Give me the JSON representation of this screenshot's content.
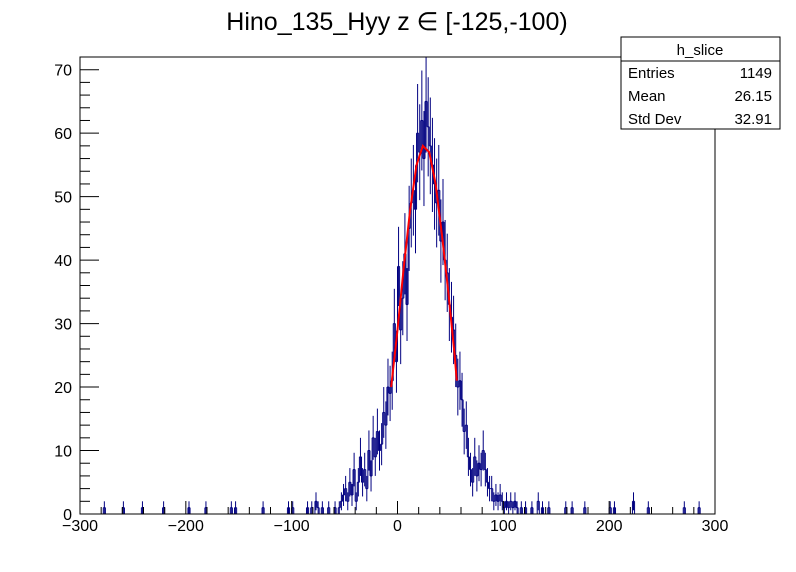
{
  "chart_data": {
    "type": "histogram",
    "title": "Hino_135_Hyy z  ∈ [-125,-100)",
    "xlim": [
      -300,
      300
    ],
    "ylim": [
      0,
      72
    ],
    "x_ticks": [
      -300,
      -200,
      -100,
      0,
      100,
      200,
      300
    ],
    "x_tick_labels": [
      "−300",
      "−200",
      "−100",
      "0",
      "100",
      "200",
      "300"
    ],
    "y_ticks": [
      0,
      10,
      20,
      30,
      40,
      50,
      60,
      70
    ],
    "y_tick_labels": [
      "0",
      "10",
      "20",
      "30",
      "40",
      "50",
      "60",
      "70"
    ],
    "grid": false,
    "bin_width": 2,
    "histogram": {
      "name": "h_slice",
      "color": "#000080",
      "bins": [
        [
          -278,
          1
        ],
        [
          -260,
          1
        ],
        [
          -242,
          1
        ],
        [
          -222,
          1
        ],
        [
          -198,
          1
        ],
        [
          -182,
          1
        ],
        [
          -158,
          1
        ],
        [
          -154,
          1
        ],
        [
          -128,
          1
        ],
        [
          -104,
          1
        ],
        [
          -100,
          1
        ],
        [
          -86,
          1
        ],
        [
          -82,
          1
        ],
        [
          -78,
          2
        ],
        [
          -76,
          1
        ],
        [
          -72,
          1
        ],
        [
          -66,
          1
        ],
        [
          -60,
          1
        ],
        [
          -56,
          1
        ],
        [
          -54,
          2
        ],
        [
          -52,
          3
        ],
        [
          -50,
          4
        ],
        [
          -48,
          2
        ],
        [
          -46,
          5
        ],
        [
          -44,
          3
        ],
        [
          -42,
          7
        ],
        [
          -40,
          2
        ],
        [
          -38,
          5
        ],
        [
          -36,
          9
        ],
        [
          -34,
          5
        ],
        [
          -32,
          7
        ],
        [
          -30,
          4
        ],
        [
          -28,
          10
        ],
        [
          -26,
          6
        ],
        [
          -24,
          12
        ],
        [
          -22,
          9
        ],
        [
          -20,
          13
        ],
        [
          -18,
          10
        ],
        [
          -16,
          11
        ],
        [
          -14,
          16
        ],
        [
          -12,
          14
        ],
        [
          -10,
          20
        ],
        [
          -8,
          19
        ],
        [
          -6,
          21
        ],
        [
          -4,
          30
        ],
        [
          -2,
          24
        ],
        [
          0,
          39
        ],
        [
          2,
          29
        ],
        [
          4,
          34
        ],
        [
          6,
          41
        ],
        [
          8,
          33
        ],
        [
          10,
          45
        ],
        [
          12,
          49
        ],
        [
          14,
          51
        ],
        [
          16,
          48
        ],
        [
          18,
          60
        ],
        [
          20,
          57
        ],
        [
          22,
          62
        ],
        [
          24,
          56
        ],
        [
          26,
          65
        ],
        [
          28,
          61
        ],
        [
          30,
          58
        ],
        [
          32,
          55
        ],
        [
          34,
          52
        ],
        [
          36,
          49
        ],
        [
          38,
          51
        ],
        [
          40,
          43
        ],
        [
          42,
          46
        ],
        [
          44,
          40
        ],
        [
          46,
          38
        ],
        [
          48,
          33
        ],
        [
          50,
          31
        ],
        [
          52,
          29
        ],
        [
          54,
          25
        ],
        [
          56,
          20
        ],
        [
          58,
          21
        ],
        [
          60,
          18
        ],
        [
          62,
          13
        ],
        [
          64,
          14
        ],
        [
          66,
          9
        ],
        [
          68,
          7
        ],
        [
          70,
          5
        ],
        [
          72,
          9
        ],
        [
          74,
          6
        ],
        [
          76,
          8
        ],
        [
          78,
          7
        ],
        [
          80,
          10
        ],
        [
          82,
          7
        ],
        [
          84,
          5
        ],
        [
          86,
          4
        ],
        [
          88,
          4
        ],
        [
          90,
          2
        ],
        [
          92,
          3
        ],
        [
          94,
          2
        ],
        [
          96,
          3
        ],
        [
          98,
          2
        ],
        [
          100,
          1
        ],
        [
          102,
          2
        ],
        [
          104,
          1
        ],
        [
          106,
          2
        ],
        [
          108,
          1
        ],
        [
          110,
          2
        ],
        [
          112,
          1
        ],
        [
          116,
          1
        ],
        [
          120,
          1
        ],
        [
          126,
          1
        ],
        [
          132,
          2
        ],
        [
          136,
          1
        ],
        [
          142,
          1
        ],
        [
          158,
          1
        ],
        [
          164,
          1
        ],
        [
          176,
          1
        ],
        [
          200,
          1
        ],
        [
          204,
          1
        ],
        [
          222,
          2
        ],
        [
          236,
          1
        ],
        [
          270,
          1
        ],
        [
          284,
          1
        ]
      ]
    },
    "fit": {
      "color": "#ff0000",
      "x_range": [
        -6,
        56
      ],
      "curve": [
        [
          -6,
          20
        ],
        [
          0,
          29
        ],
        [
          6,
          39
        ],
        [
          12,
          48
        ],
        [
          18,
          55
        ],
        [
          24,
          58
        ],
        [
          30,
          57
        ],
        [
          36,
          52
        ],
        [
          42,
          44
        ],
        [
          48,
          35
        ],
        [
          54,
          25
        ],
        [
          56,
          21
        ]
      ]
    },
    "stats_box": {
      "title": "h_slice",
      "rows": [
        {
          "label": "Entries",
          "value": "1149"
        },
        {
          "label": "Mean",
          "value": "26.15"
        },
        {
          "label": "Std Dev",
          "value": "32.91"
        }
      ]
    }
  }
}
